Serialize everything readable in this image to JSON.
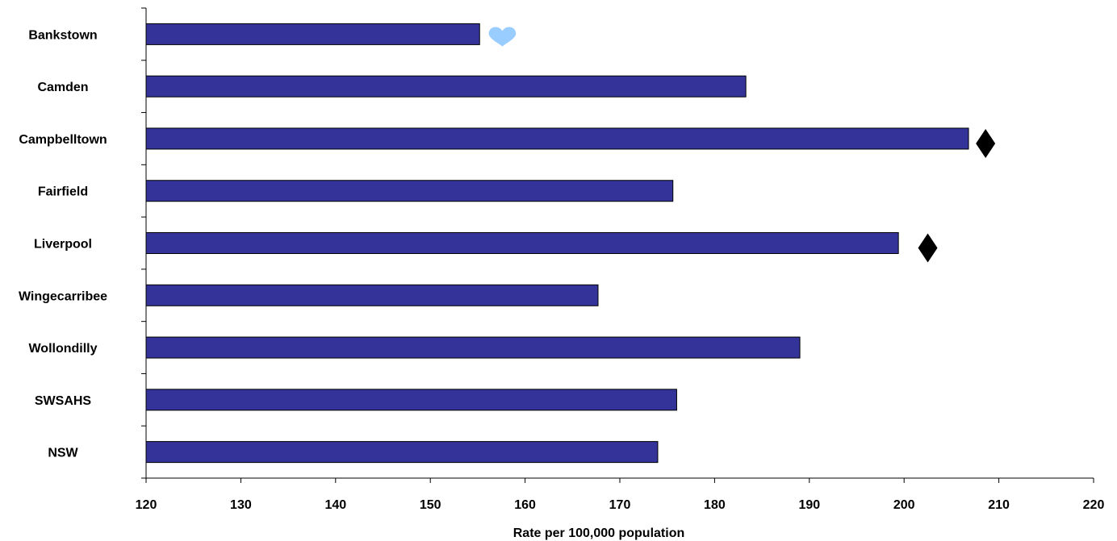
{
  "chart_data": {
    "type": "bar",
    "orientation": "horizontal",
    "categories": [
      "Bankstown",
      "Camden",
      "Campbelltown",
      "Fairfield",
      "Liverpool",
      "Wingecarribee",
      "Wollondilly",
      "SWSAHS",
      "NSW"
    ],
    "values": [
      155.2,
      183.3,
      206.8,
      175.6,
      199.4,
      167.7,
      189.0,
      176.0,
      174.0
    ],
    "xlabel": "Rate per 100,000 population",
    "xlim": [
      120,
      220
    ],
    "xticks": [
      120,
      130,
      140,
      150,
      160,
      170,
      180,
      190,
      200,
      210,
      220
    ],
    "grid": false,
    "bar_color": "#333399",
    "markers": [
      {
        "category": "Bankstown",
        "symbol": "heart",
        "color": "#99ccff",
        "x": 157.6
      },
      {
        "category": "Campbelltown",
        "symbol": "diamond",
        "color": "#000000",
        "x": 208.6
      },
      {
        "category": "Liverpool",
        "symbol": "diamond",
        "color": "#000000",
        "x": 202.5
      }
    ]
  }
}
